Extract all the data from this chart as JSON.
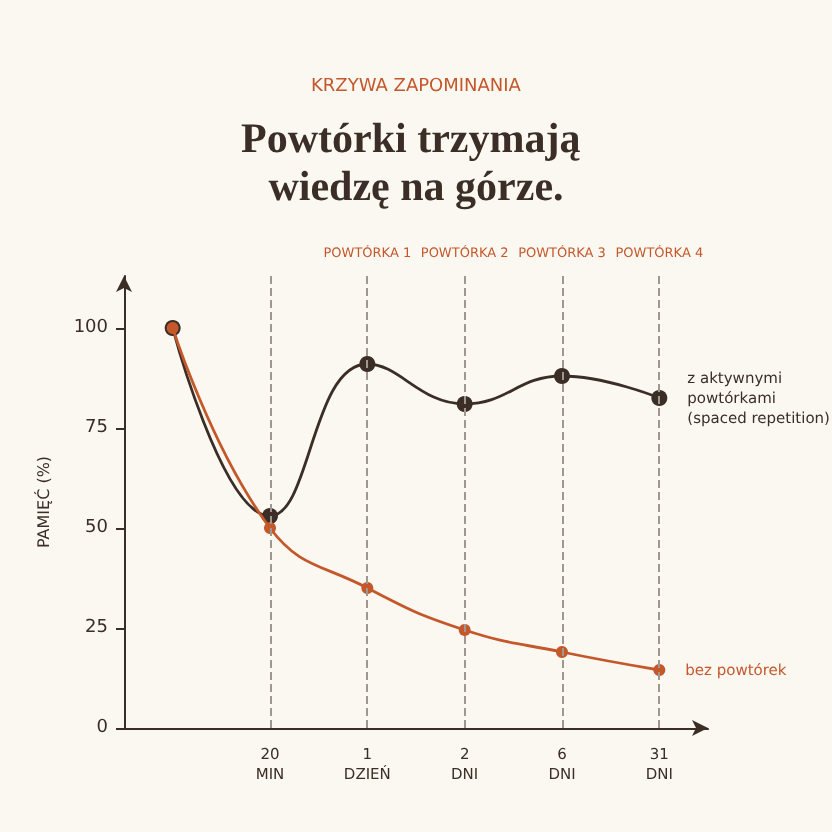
{
  "chart_data": {
    "type": "line",
    "subtitle": "KRZYWA ZAPOMINANIA",
    "title": "Powtórki trzymają wiedzę na górze.",
    "ylabel": "PAMIĘĆ (%)",
    "categories": [
      null,
      "20\nMIN",
      "1\nDZIEŃ",
      "2\nDNI",
      "6\nDNI",
      "31\nDNI"
    ],
    "series": [
      {
        "name": "z aktywnymi\npowtórkami\n(spaced repetition)",
        "color": "#3b2e26",
        "values": [
          100,
          53,
          91,
          81,
          88,
          82.5
        ]
      },
      {
        "name": "bez powtórek",
        "color": "#c4582b",
        "values": [
          100,
          50,
          35,
          24.5,
          19,
          14.5
        ]
      }
    ],
    "ylim": [
      0,
      113
    ],
    "yticks": [
      0,
      25,
      50,
      75,
      100
    ],
    "ref_lines": [
      {
        "axis": "x",
        "value": "20\nMIN",
        "label": null,
        "color": "#a09890",
        "line_style": "dashed"
      },
      {
        "axis": "x",
        "value": "1\nDZIEŃ",
        "label": "POWTÓRKA 1",
        "color": "#a09890",
        "line_style": "dashed"
      },
      {
        "axis": "x",
        "value": "2\nDNI",
        "label": "POWTÓRKA 2",
        "color": "#a09890",
        "line_style": "dashed"
      },
      {
        "axis": "x",
        "value": "6\nDNI",
        "label": "POWTÓRKA 3",
        "color": "#a09890",
        "line_style": "dashed"
      },
      {
        "axis": "x",
        "value": "31\nDNI",
        "label": "POWTÓRKA 4",
        "color": "#a09890",
        "line_style": "dashed"
      }
    ],
    "grid": false,
    "legend": false,
    "marker": "circle",
    "line_style": "solid"
  }
}
